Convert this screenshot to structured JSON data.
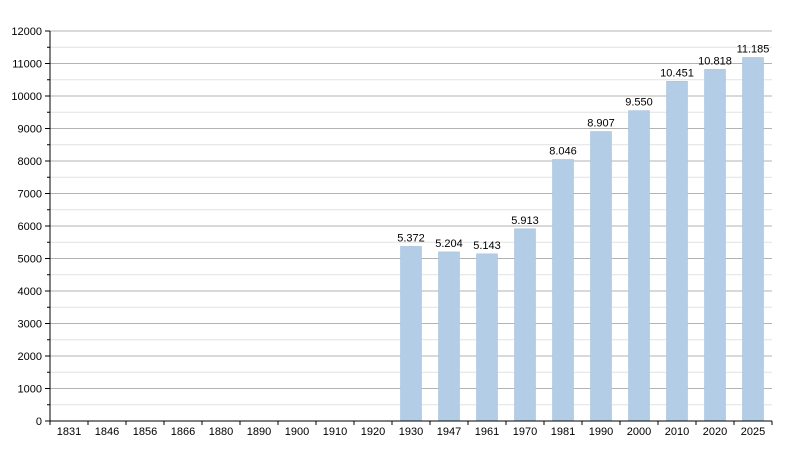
{
  "chart_data": {
    "type": "bar",
    "title": "",
    "xlabel": "",
    "ylabel": "",
    "categories": [
      "1831",
      "1846",
      "1856",
      "1866",
      "1880",
      "1890",
      "1900",
      "1910",
      "1920",
      "1930",
      "1947",
      "1961",
      "1970",
      "1981",
      "1990",
      "2000",
      "2010",
      "2020",
      "2025"
    ],
    "values": [
      null,
      null,
      null,
      null,
      null,
      null,
      null,
      null,
      null,
      5372,
      5204,
      5143,
      5913,
      8046,
      8907,
      9550,
      10451,
      10818,
      11185
    ],
    "data_labels": [
      null,
      null,
      null,
      null,
      null,
      null,
      null,
      null,
      null,
      "5.372",
      "5.204",
      "5.143",
      "5.913",
      "8.046",
      "8.907",
      "9.550",
      "10.451",
      "10.818",
      "11.185"
    ],
    "ylim": [
      0,
      12000
    ],
    "yticks": [
      0,
      1000,
      2000,
      3000,
      4000,
      5000,
      6000,
      7000,
      8000,
      9000,
      10000,
      11000,
      12000
    ],
    "ytick_labels": [
      "0",
      "1000",
      "2000",
      "3000",
      "4000",
      "5000",
      "6000",
      "7000",
      "8000",
      "9000",
      "10000",
      "11000",
      "12000"
    ],
    "grid": true,
    "legend": "none",
    "colors": {
      "bar": "#b4cde6",
      "bar_edge": "#a7c3e0",
      "grid_major": "#b3b3b3",
      "grid_minor": "#e2e2e2",
      "axis": "#000000"
    }
  }
}
